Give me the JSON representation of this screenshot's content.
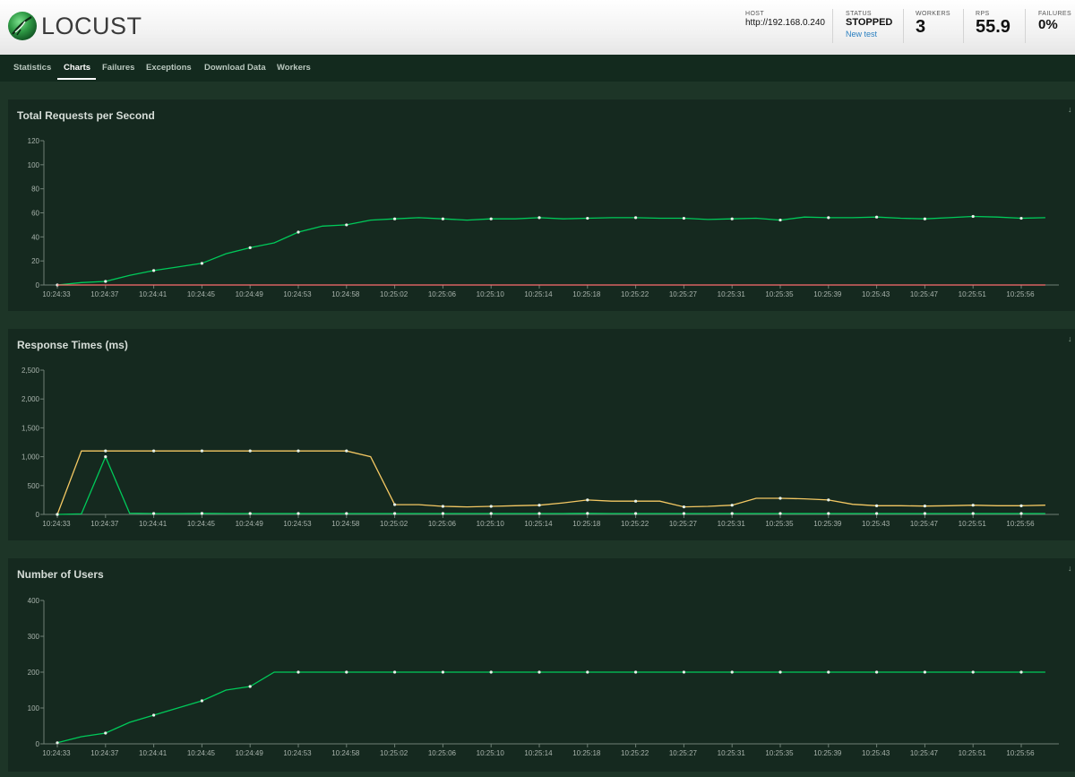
{
  "header": {
    "logo_text": "LOCUST",
    "host": {
      "label": "HOST",
      "value": "http://192.168.0.240"
    },
    "status": {
      "label": "STATUS",
      "value": "STOPPED",
      "link": "New test"
    },
    "workers": {
      "label": "WORKERS",
      "value": "3"
    },
    "rps": {
      "label": "RPS",
      "value": "55.9"
    },
    "failures": {
      "label": "FAILURES",
      "value": "0%"
    }
  },
  "nav": {
    "tabs": [
      {
        "label": "Statistics"
      },
      {
        "label": "Charts"
      },
      {
        "label": "Failures"
      },
      {
        "label": "Exceptions"
      },
      {
        "label": "Download Data"
      },
      {
        "label": "Workers"
      }
    ],
    "active": 1
  },
  "colors": {
    "green": "#00ca5a",
    "red": "#ff6d6d",
    "yellow": "#f4c863",
    "axis": "#6e7f75",
    "tick_text": "#a8b3ac"
  },
  "chart_data": [
    {
      "type": "line",
      "title": "Total Requests per Second",
      "x": [
        "10:24:33",
        "10:24:35",
        "10:24:37",
        "10:24:39",
        "10:24:41",
        "10:24:43",
        "10:24:45",
        "10:24:47",
        "10:24:49",
        "10:24:51",
        "10:24:53",
        "10:24:55",
        "10:24:58",
        "10:25:00",
        "10:25:02",
        "10:25:04",
        "10:25:06",
        "10:25:08",
        "10:25:10",
        "10:25:12",
        "10:25:14",
        "10:25:16",
        "10:25:18",
        "10:25:20",
        "10:25:22",
        "10:25:25",
        "10:25:27",
        "10:25:29",
        "10:25:31",
        "10:25:33",
        "10:25:35",
        "10:25:37",
        "10:25:39",
        "10:25:41",
        "10:25:43",
        "10:25:45",
        "10:25:47",
        "10:25:49",
        "10:25:51",
        "10:25:54",
        "10:25:56",
        "10:25:58"
      ],
      "x_tick_labels": [
        "10:24:33",
        "10:24:37",
        "10:24:41",
        "10:24:45",
        "10:24:49",
        "10:24:53",
        "10:24:58",
        "10:25:02",
        "10:25:06",
        "10:25:10",
        "10:25:14",
        "10:25:18",
        "10:25:22",
        "10:25:27",
        "10:25:31",
        "10:25:35",
        "10:25:39",
        "10:25:43",
        "10:25:47",
        "10:25:51",
        "10:25:56"
      ],
      "ylim": [
        0,
        120
      ],
      "yticks": [
        "0",
        "20",
        "40",
        "60",
        "80",
        "100",
        "120"
      ],
      "series": [
        {
          "color": "#00ca5a",
          "values": [
            0,
            2,
            3,
            8,
            12,
            15,
            18,
            26,
            31,
            35,
            44,
            49,
            50,
            54,
            55,
            56,
            55,
            54,
            55,
            55,
            56,
            55,
            55.5,
            56,
            56,
            55.5,
            55.5,
            54.5,
            55,
            55.5,
            54,
            56.5,
            56,
            56,
            56.5,
            55.5,
            55,
            56,
            57,
            56.5,
            55.5,
            56
          ]
        },
        {
          "color": "#ff6d6d",
          "values": [
            0,
            0,
            0,
            0,
            0,
            0,
            0,
            0,
            0,
            0,
            0,
            0,
            0,
            0,
            0,
            0,
            0,
            0,
            0,
            0,
            0,
            0,
            0,
            0,
            0,
            0,
            0,
            0,
            0,
            0,
            0,
            0,
            0,
            0,
            0,
            0,
            0,
            0,
            0,
            0,
            0,
            0
          ]
        }
      ]
    },
    {
      "type": "line",
      "title": "Response Times (ms)",
      "x": [
        "10:24:33",
        "10:24:35",
        "10:24:37",
        "10:24:39",
        "10:24:41",
        "10:24:43",
        "10:24:45",
        "10:24:47",
        "10:24:49",
        "10:24:51",
        "10:24:53",
        "10:24:55",
        "10:24:58",
        "10:25:00",
        "10:25:02",
        "10:25:04",
        "10:25:06",
        "10:25:08",
        "10:25:10",
        "10:25:12",
        "10:25:14",
        "10:25:16",
        "10:25:18",
        "10:25:20",
        "10:25:22",
        "10:25:25",
        "10:25:27",
        "10:25:29",
        "10:25:31",
        "10:25:33",
        "10:25:35",
        "10:25:37",
        "10:25:39",
        "10:25:41",
        "10:25:43",
        "10:25:45",
        "10:25:47",
        "10:25:49",
        "10:25:51",
        "10:25:54",
        "10:25:56",
        "10:25:58"
      ],
      "x_tick_labels": [
        "10:24:33",
        "10:24:37",
        "10:24:41",
        "10:24:45",
        "10:24:49",
        "10:24:53",
        "10:24:58",
        "10:25:02",
        "10:25:06",
        "10:25:10",
        "10:25:14",
        "10:25:18",
        "10:25:22",
        "10:25:27",
        "10:25:31",
        "10:25:35",
        "10:25:39",
        "10:25:43",
        "10:25:47",
        "10:25:51",
        "10:25:56"
      ],
      "ylim": [
        0,
        2500
      ],
      "yticks": [
        "0",
        "500",
        "1,000",
        "1,500",
        "2,000",
        "2,500"
      ],
      "series": [
        {
          "color": "#f4c863",
          "values": [
            0,
            1100,
            1100,
            1100,
            1100,
            1100,
            1100,
            1100,
            1100,
            1100,
            1100,
            1100,
            1100,
            1000,
            170,
            170,
            140,
            130,
            140,
            150,
            160,
            200,
            250,
            230,
            230,
            230,
            130,
            140,
            160,
            280,
            280,
            270,
            250,
            175,
            150,
            150,
            145,
            150,
            160,
            150,
            150,
            160
          ]
        },
        {
          "color": "#00ca5a",
          "values": [
            0,
            10,
            1000,
            20,
            15,
            15,
            18,
            15,
            15,
            15,
            15,
            15,
            15,
            15,
            15,
            15,
            15,
            15,
            15,
            15,
            15,
            15,
            18,
            15,
            15,
            15,
            15,
            15,
            15,
            15,
            15,
            15,
            15,
            15,
            15,
            15,
            15,
            15,
            15,
            15,
            15,
            15
          ]
        }
      ]
    },
    {
      "type": "line",
      "title": "Number of Users",
      "x": [
        "10:24:33",
        "10:24:35",
        "10:24:37",
        "10:24:39",
        "10:24:41",
        "10:24:43",
        "10:24:45",
        "10:24:47",
        "10:24:49",
        "10:24:51",
        "10:24:53",
        "10:24:55",
        "10:24:58",
        "10:25:00",
        "10:25:02",
        "10:25:04",
        "10:25:06",
        "10:25:08",
        "10:25:10",
        "10:25:12",
        "10:25:14",
        "10:25:16",
        "10:25:18",
        "10:25:20",
        "10:25:22",
        "10:25:25",
        "10:25:27",
        "10:25:29",
        "10:25:31",
        "10:25:33",
        "10:25:35",
        "10:25:37",
        "10:25:39",
        "10:25:41",
        "10:25:43",
        "10:25:45",
        "10:25:47",
        "10:25:49",
        "10:25:51",
        "10:25:54",
        "10:25:56",
        "10:25:58"
      ],
      "x_tick_labels": [
        "10:24:33",
        "10:24:37",
        "10:24:41",
        "10:24:45",
        "10:24:49",
        "10:24:53",
        "10:24:58",
        "10:25:02",
        "10:25:06",
        "10:25:10",
        "10:25:14",
        "10:25:18",
        "10:25:22",
        "10:25:27",
        "10:25:31",
        "10:25:35",
        "10:25:39",
        "10:25:43",
        "10:25:47",
        "10:25:51",
        "10:25:56"
      ],
      "ylim": [
        0,
        400
      ],
      "yticks": [
        "0",
        "100",
        "200",
        "300",
        "400"
      ],
      "series": [
        {
          "color": "#00ca5a",
          "values": [
            3,
            20,
            30,
            60,
            80,
            100,
            120,
            150,
            160,
            200,
            200,
            200,
            200,
            200,
            200,
            200,
            200,
            200,
            200,
            200,
            200,
            200,
            200,
            200,
            200,
            200,
            200,
            200,
            200,
            200,
            200,
            200,
            200,
            200,
            200,
            200,
            200,
            200,
            200,
            200,
            200,
            200
          ]
        }
      ]
    }
  ]
}
